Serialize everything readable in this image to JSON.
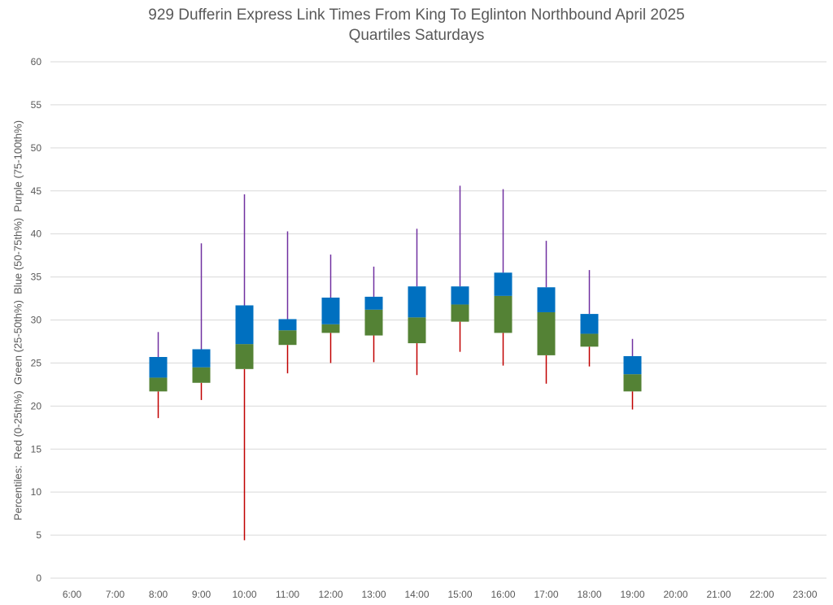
{
  "chart_data": {
    "type": "boxplot",
    "title": "929 Dufferin Express Link Times From King To Eglinton Northbound April 2025",
    "subtitle": "Quartiles Saturdays",
    "xlabel": "",
    "ylabel": "Percentiles:  Red (0-25th%)  Green (25-50th%)  Blue (50-75th%)  Purple (75-100th%)",
    "ylim": [
      0,
      60
    ],
    "yticks": [
      0,
      5,
      10,
      15,
      20,
      25,
      30,
      35,
      40,
      45,
      50,
      55,
      60
    ],
    "grid": true,
    "categories": [
      "6:00",
      "7:00",
      "8:00",
      "9:00",
      "10:00",
      "11:00",
      "12:00",
      "13:00",
      "14:00",
      "15:00",
      "16:00",
      "17:00",
      "18:00",
      "19:00",
      "20:00",
      "21:00",
      "22:00",
      "23:00"
    ],
    "colors": {
      "min_to_q1": "#C00000",
      "q1_to_median": "#548235",
      "median_to_q3": "#0070C0",
      "q3_to_max": "#7030A0",
      "grid": "#D9D9D9",
      "text": "#595959"
    },
    "series": [
      {
        "name": "min",
        "values": [
          null,
          null,
          18.6,
          20.7,
          4.4,
          23.8,
          25.0,
          25.1,
          23.6,
          26.3,
          24.7,
          22.6,
          24.6,
          19.6,
          null,
          null,
          null,
          null
        ]
      },
      {
        "name": "q1",
        "values": [
          null,
          null,
          21.7,
          22.7,
          24.3,
          27.1,
          28.5,
          28.2,
          27.3,
          29.8,
          28.5,
          25.9,
          26.9,
          21.7,
          null,
          null,
          null,
          null
        ]
      },
      {
        "name": "median",
        "values": [
          null,
          null,
          23.3,
          24.5,
          27.2,
          28.8,
          29.5,
          31.2,
          30.3,
          31.8,
          32.8,
          30.9,
          28.4,
          23.7,
          null,
          null,
          null,
          null
        ]
      },
      {
        "name": "q3",
        "values": [
          null,
          null,
          25.7,
          26.6,
          31.7,
          30.1,
          32.6,
          32.7,
          33.9,
          33.9,
          35.5,
          33.8,
          30.7,
          25.8,
          null,
          null,
          null,
          null
        ]
      },
      {
        "name": "max",
        "values": [
          null,
          null,
          28.6,
          38.9,
          44.6,
          40.3,
          37.6,
          36.2,
          40.6,
          45.6,
          45.2,
          39.2,
          35.8,
          27.8,
          null,
          null,
          null,
          null
        ]
      }
    ]
  }
}
